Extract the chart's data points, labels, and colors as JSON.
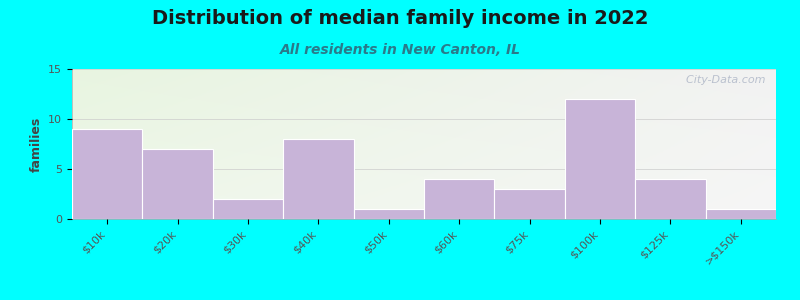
{
  "title": "Distribution of median family income in 2022",
  "subtitle": "All residents in New Canton, IL",
  "ylabel": "families",
  "categories": [
    "$10k",
    "$20k",
    "$30k",
    "$40k",
    "$50k",
    "$60k",
    "$75k",
    "$100k",
    "$125k",
    ">$150k"
  ],
  "values": [
    9,
    7,
    2,
    8,
    1,
    4,
    3,
    12,
    4,
    1
  ],
  "bar_color": "#c8b4d8",
  "bar_edgecolor": "#ffffff",
  "ylim": [
    0,
    15
  ],
  "yticks": [
    0,
    5,
    10,
    15
  ],
  "background_color": "#00FFFF",
  "title_fontsize": 14,
  "subtitle_fontsize": 10,
  "watermark_text": "  City-Data.com",
  "watermark_color": "#b0b8c8"
}
